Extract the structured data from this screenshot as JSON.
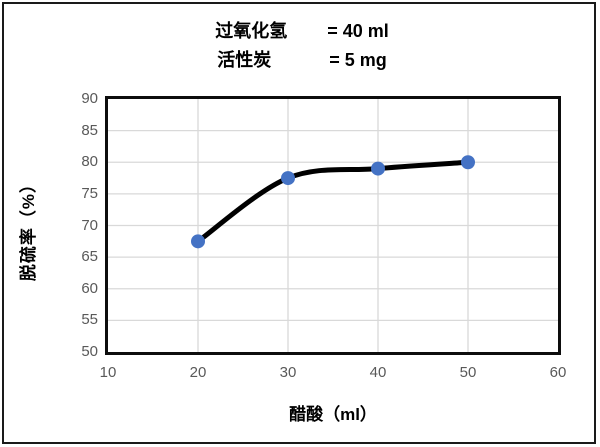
{
  "chart_data": {
    "type": "line",
    "title_lines": [
      {
        "label": "过氧化氢",
        "value": "= 40 ml"
      },
      {
        "label": "活性炭",
        "value": "= 5 mg"
      }
    ],
    "xlabel": "醋酸（ml）",
    "ylabel": "脱硫率（%）",
    "x": [
      20,
      30,
      40,
      50
    ],
    "y": [
      67.5,
      77.5,
      79,
      80
    ],
    "series_name": "脱硫率",
    "xlim": [
      10,
      60
    ],
    "ylim": [
      50,
      90
    ],
    "x_ticks": [
      10,
      20,
      30,
      40,
      50,
      60
    ],
    "y_ticks": [
      90,
      85,
      80,
      75,
      70,
      65,
      60,
      55,
      50
    ],
    "grid": true,
    "smooth_line": true,
    "legend": "none",
    "colors": {
      "line": "#000000",
      "marker": "#4472C4",
      "gridline": "#D9D9D9",
      "tick_text": "#595959",
      "plot_border": "#0d0d0d",
      "outer_border": "#1a1a1a"
    }
  }
}
